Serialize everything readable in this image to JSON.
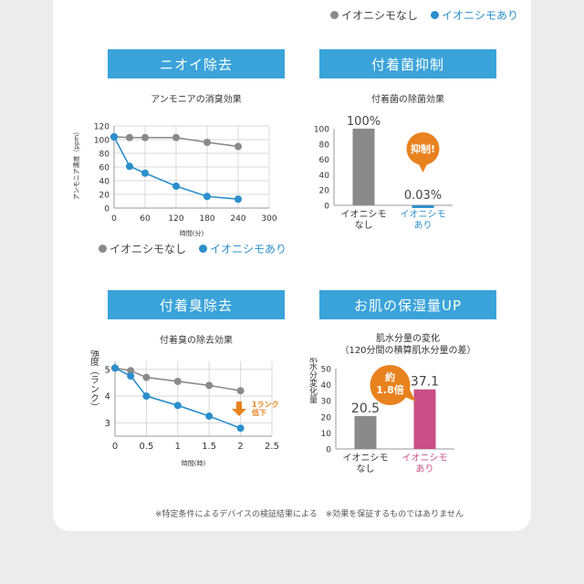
{
  "colors": {
    "gray": "#8a8a8a",
    "blue": "#2b8fcc",
    "pink": "#c94f86",
    "orange": "#e8821e",
    "header": "#3aa3d9"
  },
  "top_legend": {
    "without": "イオニシモなし",
    "with": "イオニシモあり"
  },
  "panels": {
    "odor": {
      "header": "ニオイ除去"
    },
    "bacteria": {
      "header": "付着菌抑制"
    },
    "smell": {
      "header": "付着臭除去"
    },
    "moisture": {
      "header": "お肌の保湿量UP"
    }
  },
  "footnote": "※特定条件によるデバイスの検証結果による　※効果を保証するものではありません",
  "chart_data": [
    {
      "id": "ammonia",
      "type": "line",
      "title": "アンモニアの消臭効果",
      "xlabel": "時間(分)",
      "ylabel": "アンモニア濃度（ppm）",
      "xlim": [
        0,
        300
      ],
      "ylim": [
        0,
        120
      ],
      "xticks": [
        0,
        60,
        120,
        180,
        240,
        300
      ],
      "yticks": [
        0,
        20,
        40,
        60,
        80,
        100,
        120
      ],
      "grid": true,
      "legend": "bottom",
      "series": [
        {
          "name": "イオニシモなし",
          "color": "#8a8a8a",
          "x": [
            0,
            30,
            60,
            120,
            180,
            240
          ],
          "y": [
            104,
            103,
            103,
            103,
            96,
            90
          ]
        },
        {
          "name": "イオニシモあり",
          "color": "#2b8fcc",
          "x": [
            0,
            30,
            60,
            120,
            180,
            240
          ],
          "y": [
            104,
            61,
            51,
            32,
            17,
            13
          ]
        }
      ]
    },
    {
      "id": "bacteria",
      "type": "bar",
      "title": "付着菌の除菌効果",
      "categories": [
        "イオニシモ\nなし",
        "イオニシモ\nあり"
      ],
      "values": [
        100,
        0.03
      ],
      "labels": [
        "100%",
        "0.03%"
      ],
      "colors": [
        "#8a8a8a",
        "#2b8fcc"
      ],
      "ylim": [
        0,
        100
      ],
      "yticks": [
        0,
        20,
        40,
        60,
        80,
        100
      ],
      "annotation": "抑制!"
    },
    {
      "id": "smell",
      "type": "line",
      "title": "付着臭の除去効果",
      "xlabel": "時間(時)",
      "ylabel": "臭気強度（ランク）",
      "xlim": [
        0,
        2.5
      ],
      "ylim": [
        2.5,
        5.3
      ],
      "xticks": [
        0,
        0.5,
        1,
        1.5,
        2,
        2.5
      ],
      "yticks": [
        3,
        4,
        5
      ],
      "grid": true,
      "series": [
        {
          "name": "イオニシモなし",
          "color": "#8a8a8a",
          "x": [
            0,
            0.25,
            0.5,
            1,
            1.5,
            2
          ],
          "y": [
            5.05,
            4.95,
            4.7,
            4.55,
            4.4,
            4.2
          ]
        },
        {
          "name": "イオニシモあり",
          "color": "#2b8fcc",
          "x": [
            0,
            0.25,
            0.5,
            1,
            1.5,
            2
          ],
          "y": [
            5.05,
            4.75,
            4.0,
            3.65,
            3.25,
            2.8
          ]
        }
      ],
      "annotation": "1ランク\n低下"
    },
    {
      "id": "moisture",
      "type": "bar",
      "title": "肌水分量の変化",
      "subtitle": "（120分間の積算肌水分量の差）",
      "ylabel": "積算肌水分変化量",
      "categories": [
        "イオニシモ\nなし",
        "イオニシモ\nあり"
      ],
      "values": [
        20.5,
        37.1
      ],
      "labels": [
        "20.5",
        "37.1"
      ],
      "colors": [
        "#8a8a8a",
        "#c94f86"
      ],
      "ylim": [
        0,
        50
      ],
      "yticks": [
        0,
        10,
        20,
        30,
        40,
        50
      ],
      "annotation": "約\n1.8倍"
    }
  ]
}
